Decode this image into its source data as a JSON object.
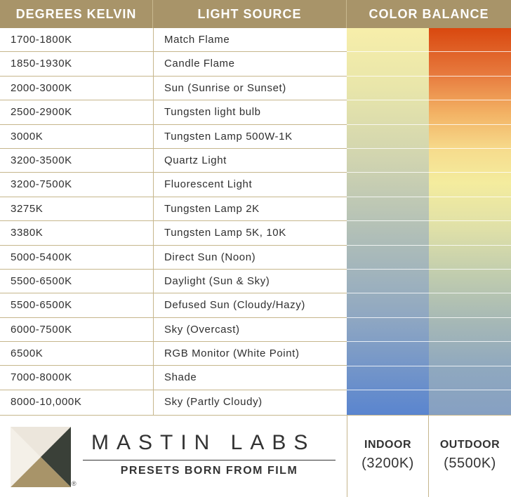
{
  "header": {
    "col_kelvin": "DEGREES KELVIN",
    "col_source": "LIGHT SOURCE",
    "col_balance": "COLOR BALANCE"
  },
  "rows": [
    {
      "kelvin": "1700-1800K",
      "source": "Match Flame"
    },
    {
      "kelvin": "1850-1930K",
      "source": "Candle Flame"
    },
    {
      "kelvin": "2000-3000K",
      "source": "Sun (Sunrise or Sunset)"
    },
    {
      "kelvin": "2500-2900K",
      "source": "Tungsten light bulb"
    },
    {
      "kelvin": "3000K",
      "source": "Tungsten Lamp 500W-1K"
    },
    {
      "kelvin": "3200-3500K",
      "source": "Quartz Light"
    },
    {
      "kelvin": "3200-7500K",
      "source": "Fluorescent Light"
    },
    {
      "kelvin": "3275K",
      "source": "Tungsten Lamp 2K"
    },
    {
      "kelvin": "3380K",
      "source": "Tungsten Lamp 5K, 10K"
    },
    {
      "kelvin": "5000-5400K",
      "source": "Direct Sun (Noon)"
    },
    {
      "kelvin": "5500-6500K",
      "source": "Daylight (Sun & Sky)"
    },
    {
      "kelvin": "5500-6500K",
      "source": "Defused Sun (Cloudy/Hazy)"
    },
    {
      "kelvin": "6000-7500K",
      "source": "Sky (Overcast)"
    },
    {
      "kelvin": "6500K",
      "source": "RGB Monitor (White Point)"
    },
    {
      "kelvin": "7000-8000K",
      "source": "Shade"
    },
    {
      "kelvin": "8000-10,000K",
      "source": "Sky (Partly Cloudy)"
    }
  ],
  "footer": {
    "brand_name": "MASTIN LABS",
    "tagline": "PRESETS BORN FROM FILM",
    "registered_mark": "®",
    "indoor_label": "INDOOR",
    "indoor_value": "(3200K)",
    "outdoor_label": "OUTDOOR",
    "outdoor_value": "(5500K)"
  },
  "colors": {
    "header_bg": "#a89469",
    "rule": "#c6b68c",
    "logo_dark": "#3a4038",
    "logo_gold": "#a89469",
    "logo_light": "#ece6dc"
  }
}
